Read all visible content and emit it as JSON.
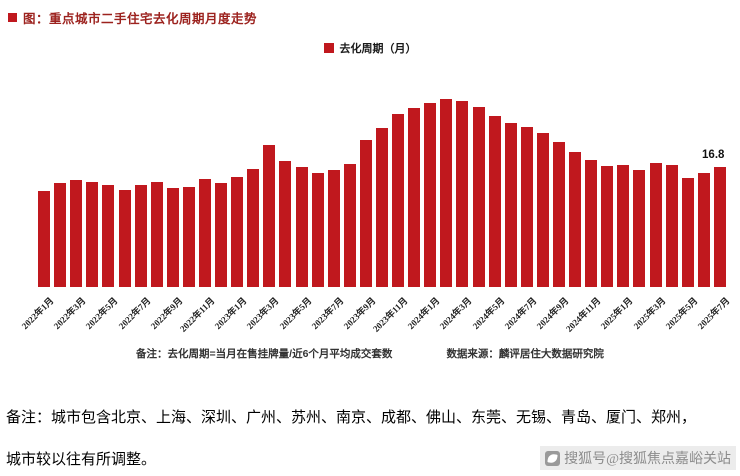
{
  "header": {
    "title": "图：重点城市二手住宅去化周期月度走势"
  },
  "legend": {
    "label": "去化周期（月）"
  },
  "colors": {
    "bar": "#c0181e",
    "title": "#9c221e",
    "watermark": "#8c8c8c"
  },
  "chart_data": {
    "type": "bar",
    "title": "重点城市二手住宅去化周期月度走势",
    "xlabel": "",
    "ylabel": "去化周期（月）",
    "ylim": [
      0,
      28
    ],
    "grid": false,
    "legend_position": "top-center",
    "tick_every": 2,
    "x": [
      "2022年1月",
      "2022年2月",
      "2022年3月",
      "2022年4月",
      "2022年5月",
      "2022年6月",
      "2022年7月",
      "2022年8月",
      "2022年9月",
      "2022年10月",
      "2022年11月",
      "2022年12月",
      "2023年1月",
      "2023年2月",
      "2023年3月",
      "2023年4月",
      "2023年5月",
      "2023年6月",
      "2023年7月",
      "2023年8月",
      "2023年9月",
      "2023年10月",
      "2023年11月",
      "2023年12月",
      "2024年1月",
      "2024年2月",
      "2024年3月",
      "2024年4月",
      "2024年5月",
      "2024年6月",
      "2024年7月",
      "2024年8月",
      "2024年9月",
      "2024年10月",
      "2024年11月",
      "2024年12月",
      "2025年1月",
      "2025年2月",
      "2025年3月",
      "2025年4月",
      "2025年5月",
      "2025年6月",
      "2025年7月"
    ],
    "values": [
      13.4,
      14.6,
      14.9,
      14.7,
      14.2,
      13.6,
      14.3,
      14.7,
      13.8,
      14.0,
      15.1,
      14.5,
      15.4,
      16.5,
      19.8,
      17.6,
      16.8,
      16.0,
      16.4,
      17.2,
      20.5,
      22.3,
      24.2,
      25.1,
      25.8,
      26.3,
      26.0,
      25.2,
      23.9,
      23.0,
      22.4,
      21.5,
      20.3,
      18.9,
      17.8,
      16.9,
      17.0,
      16.3,
      17.4,
      17.1,
      15.3,
      15.9,
      16.8
    ],
    "annotations": [
      {
        "x": "2025年7月",
        "text": "16.8"
      }
    ]
  },
  "footnotes": {
    "formula": "备注：去化周期=当月在售挂牌量/近6个月平均成交套数",
    "source": "数据来源：麟评居住大数据研究院"
  },
  "bottom_note": {
    "line1": "备注：城市包含北京、上海、深圳、广州、苏州、南京、成都、佛山、东莞、无锡、青岛、厦门、郑州，",
    "line2": "城市较以往有所调整。"
  },
  "watermark": {
    "label": "搜狐号@搜狐焦点嘉峪关站"
  }
}
